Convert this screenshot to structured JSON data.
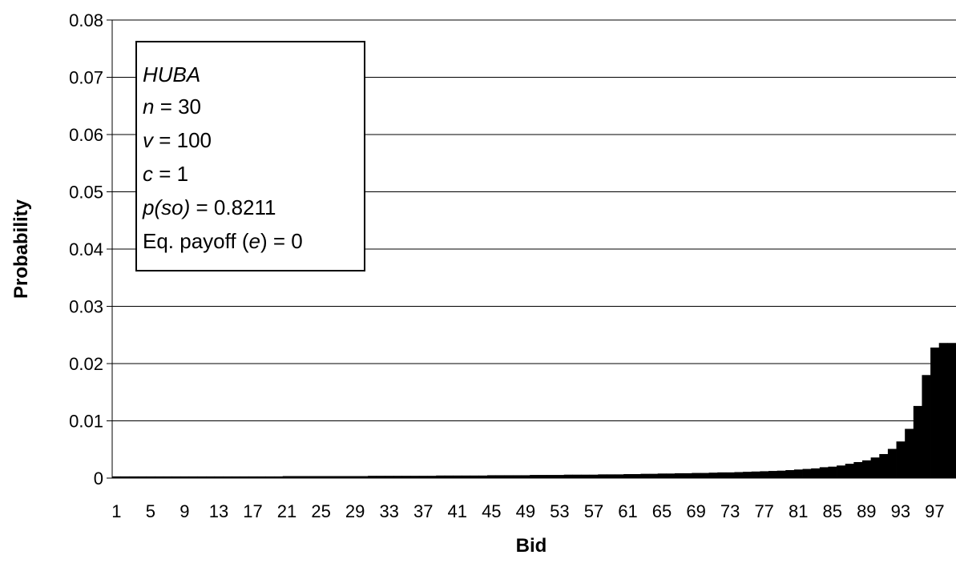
{
  "chart_data": {
    "type": "bar",
    "xlabel": "Bid",
    "ylabel": "Probability",
    "ylim": [
      0,
      0.08
    ],
    "yticks": [
      "0",
      "0.01",
      "0.02",
      "0.03",
      "0.04",
      "0.05",
      "0.06",
      "0.07",
      "0.08"
    ],
    "xtick_labels": [
      "1",
      "5",
      "9",
      "13",
      "17",
      "21",
      "25",
      "29",
      "33",
      "37",
      "41",
      "45",
      "49",
      "53",
      "57",
      "61",
      "65",
      "69",
      "73",
      "77",
      "81",
      "85",
      "89",
      "93",
      "97"
    ],
    "grid": true,
    "bar_color": "#000000",
    "categories": [
      1,
      2,
      3,
      4,
      5,
      6,
      7,
      8,
      9,
      10,
      11,
      12,
      13,
      14,
      15,
      16,
      17,
      18,
      19,
      20,
      21,
      22,
      23,
      24,
      25,
      26,
      27,
      28,
      29,
      30,
      31,
      32,
      33,
      34,
      35,
      36,
      37,
      38,
      39,
      40,
      41,
      42,
      43,
      44,
      45,
      46,
      47,
      48,
      49,
      50,
      51,
      52,
      53,
      54,
      55,
      56,
      57,
      58,
      59,
      60,
      61,
      62,
      63,
      64,
      65,
      66,
      67,
      68,
      69,
      70,
      71,
      72,
      73,
      74,
      75,
      76,
      77,
      78,
      79,
      80,
      81,
      82,
      83,
      84,
      85,
      86,
      87,
      88,
      89,
      90,
      91,
      92,
      93,
      94,
      95,
      96,
      97,
      98,
      99
    ],
    "values": [
      0.0003,
      0.0003,
      0.0003,
      0.0003,
      0.0003,
      0.0003,
      0.0003,
      0.0003,
      0.0003,
      0.0003,
      0.0003,
      0.0003,
      0.0003,
      0.0003,
      0.0003,
      0.0003,
      0.0003,
      0.0003,
      0.0003,
      0.0003,
      0.00035,
      0.00035,
      0.00035,
      0.00035,
      0.00035,
      0.00035,
      0.00035,
      0.00035,
      0.00035,
      0.00035,
      0.0004,
      0.0004,
      0.0004,
      0.0004,
      0.0004,
      0.0004,
      0.0004,
      0.0004,
      0.00045,
      0.00045,
      0.00045,
      0.00045,
      0.00045,
      0.00045,
      0.0005,
      0.0005,
      0.0005,
      0.0005,
      0.0005,
      0.00055,
      0.00055,
      0.00055,
      0.00055,
      0.0006,
      0.0006,
      0.0006,
      0.0006,
      0.00065,
      0.00065,
      0.00065,
      0.0007,
      0.0007,
      0.00075,
      0.00075,
      0.0008,
      0.0008,
      0.00085,
      0.00085,
      0.0009,
      0.0009,
      0.00095,
      0.001,
      0.001,
      0.00105,
      0.0011,
      0.00115,
      0.0012,
      0.00125,
      0.0013,
      0.0014,
      0.0015,
      0.0016,
      0.0017,
      0.0019,
      0.002,
      0.0022,
      0.0025,
      0.0028,
      0.0031,
      0.0036,
      0.0042,
      0.0051,
      0.0064,
      0.0086,
      0.0126,
      0.018,
      0.0228,
      0.0236,
      0.0236
    ]
  },
  "legend": {
    "title": "HUBA",
    "lines": [
      {
        "italic": "n",
        "rest": " = 30"
      },
      {
        "italic": "v",
        "rest": " = 100"
      },
      {
        "italic": "c",
        "rest": " = 1"
      },
      {
        "italic": "p(so)",
        "rest": " = 0.8211"
      },
      {
        "prefix": "Eq. payoff (",
        "italic": "e",
        "rest": ") = 0"
      }
    ]
  }
}
